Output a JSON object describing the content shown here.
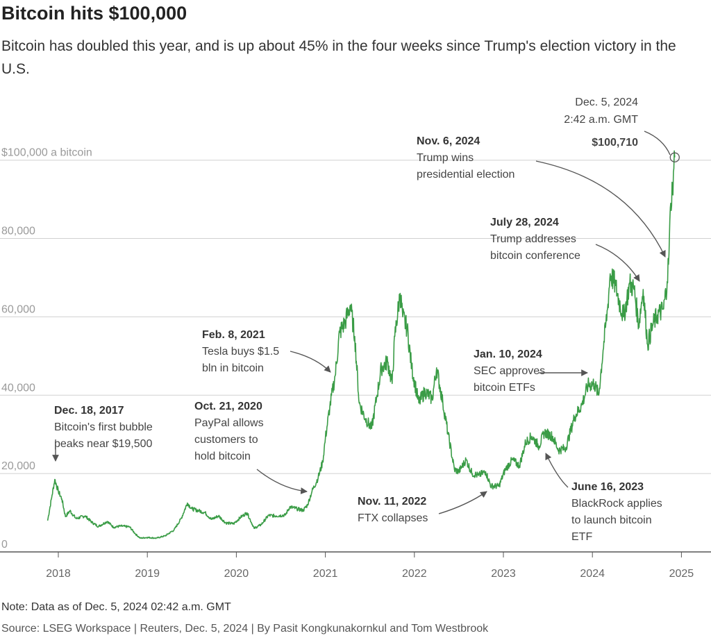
{
  "header": {
    "title": "Bitcoin hits $100,000",
    "subtitle": "Bitcoin has doubled this year, and is up about 45% in the four weeks since Trump's election victory in the U.S."
  },
  "footer": {
    "note": "Note: Data as of Dec. 5, 2024 02:42 a.m. GMT",
    "source": "Source: LSEG Workspace | Reuters, Dec. 5, 2024 | By Pasit Kongkunakornkul and Tom Westbrook"
  },
  "colors": {
    "line": "#3a9c46",
    "grid": "#d0d0d0",
    "axis": "#555555",
    "arrow": "#555555"
  },
  "chart_data": {
    "type": "line",
    "title": "Bitcoin hits $100,000",
    "ylabel": "",
    "xlabel": "",
    "ylim": [
      0,
      100000
    ],
    "xlim": [
      2017.85,
      2025.0
    ],
    "y_ticks": [
      {
        "value": 0,
        "label": "0"
      },
      {
        "value": 20000,
        "label": "20,000"
      },
      {
        "value": 40000,
        "label": "40,000"
      },
      {
        "value": 60000,
        "label": "60,000"
      },
      {
        "value": 80000,
        "label": "80,000"
      },
      {
        "value": 100000,
        "label": "$100,000 a bitcoin"
      }
    ],
    "x_ticks": [
      {
        "value": 2018,
        "label": "2018"
      },
      {
        "value": 2019,
        "label": "2019"
      },
      {
        "value": 2020,
        "label": "2020"
      },
      {
        "value": 2021,
        "label": "2021"
      },
      {
        "value": 2022,
        "label": "2022"
      },
      {
        "value": 2023,
        "label": "2023"
      },
      {
        "value": 2024,
        "label": "2024"
      },
      {
        "value": 2025,
        "label": "2025"
      }
    ],
    "grid": true,
    "series": [
      {
        "points": [
          [
            2017.88,
            8000
          ],
          [
            2017.93,
            14500
          ],
          [
            2017.96,
            18500
          ],
          [
            2018.0,
            15500
          ],
          [
            2018.04,
            13500
          ],
          [
            2018.08,
            9000
          ],
          [
            2018.13,
            10500
          ],
          [
            2018.2,
            8500
          ],
          [
            2018.3,
            9200
          ],
          [
            2018.38,
            7500
          ],
          [
            2018.45,
            6500
          ],
          [
            2018.55,
            7800
          ],
          [
            2018.62,
            6300
          ],
          [
            2018.7,
            6600
          ],
          [
            2018.8,
            6400
          ],
          [
            2018.87,
            4500
          ],
          [
            2018.92,
            3500
          ],
          [
            2019.0,
            3700
          ],
          [
            2019.1,
            3500
          ],
          [
            2019.2,
            4100
          ],
          [
            2019.3,
            5600
          ],
          [
            2019.38,
            8500
          ],
          [
            2019.45,
            12500
          ],
          [
            2019.5,
            11000
          ],
          [
            2019.58,
            10500
          ],
          [
            2019.65,
            10000
          ],
          [
            2019.72,
            8300
          ],
          [
            2019.8,
            9200
          ],
          [
            2019.88,
            7400
          ],
          [
            2019.97,
            7200
          ],
          [
            2020.05,
            8900
          ],
          [
            2020.12,
            10000
          ],
          [
            2020.2,
            6000
          ],
          [
            2020.28,
            7000
          ],
          [
            2020.36,
            9300
          ],
          [
            2020.45,
            9200
          ],
          [
            2020.55,
            9400
          ],
          [
            2020.6,
            11500
          ],
          [
            2020.68,
            11000
          ],
          [
            2020.75,
            10600
          ],
          [
            2020.8,
            12000
          ],
          [
            2020.85,
            15500
          ],
          [
            2020.92,
            19000
          ],
          [
            2020.97,
            23000
          ],
          [
            2021.0,
            29000
          ],
          [
            2021.05,
            37000
          ],
          [
            2021.11,
            45000
          ],
          [
            2021.16,
            56000
          ],
          [
            2021.22,
            58500
          ],
          [
            2021.28,
            63000
          ],
          [
            2021.33,
            55000
          ],
          [
            2021.38,
            38000
          ],
          [
            2021.45,
            34000
          ],
          [
            2021.52,
            31500
          ],
          [
            2021.58,
            40000
          ],
          [
            2021.63,
            47000
          ],
          [
            2021.7,
            48500
          ],
          [
            2021.75,
            43000
          ],
          [
            2021.78,
            55000
          ],
          [
            2021.84,
            66000
          ],
          [
            2021.87,
            60000
          ],
          [
            2021.92,
            57000
          ],
          [
            2021.97,
            47000
          ],
          [
            2022.05,
            38000
          ],
          [
            2022.12,
            41000
          ],
          [
            2022.2,
            39000
          ],
          [
            2022.25,
            47000
          ],
          [
            2022.32,
            38000
          ],
          [
            2022.38,
            30000
          ],
          [
            2022.45,
            21000
          ],
          [
            2022.5,
            20500
          ],
          [
            2022.58,
            23500
          ],
          [
            2022.65,
            20000
          ],
          [
            2022.72,
            19500
          ],
          [
            2022.8,
            20500
          ],
          [
            2022.86,
            16800
          ],
          [
            2022.95,
            16800
          ],
          [
            2023.02,
            21000
          ],
          [
            2023.1,
            23500
          ],
          [
            2023.18,
            22000
          ],
          [
            2023.25,
            28000
          ],
          [
            2023.32,
            29500
          ],
          [
            2023.4,
            27000
          ],
          [
            2023.46,
            30500
          ],
          [
            2023.55,
            29500
          ],
          [
            2023.62,
            26000
          ],
          [
            2023.7,
            26500
          ],
          [
            2023.8,
            34500
          ],
          [
            2023.88,
            37500
          ],
          [
            2023.95,
            42500
          ],
          [
            2024.02,
            43000
          ],
          [
            2024.07,
            40000
          ],
          [
            2024.12,
            51500
          ],
          [
            2024.17,
            62000
          ],
          [
            2024.2,
            71000
          ],
          [
            2024.26,
            68000
          ],
          [
            2024.3,
            64000
          ],
          [
            2024.35,
            60000
          ],
          [
            2024.42,
            68500
          ],
          [
            2024.47,
            67000
          ],
          [
            2024.52,
            58000
          ],
          [
            2024.57,
            67000
          ],
          [
            2024.62,
            53000
          ],
          [
            2024.68,
            58000
          ],
          [
            2024.73,
            60500
          ],
          [
            2024.8,
            62000
          ],
          [
            2024.84,
            69000
          ],
          [
            2024.86,
            76000
          ],
          [
            2024.88,
            89000
          ],
          [
            2024.9,
            93000
          ],
          [
            2024.91,
            97000
          ],
          [
            2024.925,
            100710
          ]
        ]
      }
    ],
    "annotations": [
      {
        "date": "Dec. 18, 2017",
        "lines": [
          "Bitcoin's first bubble",
          "peaks near $19,500"
        ]
      },
      {
        "date": "Oct. 21, 2020",
        "lines": [
          "PayPal allows",
          "customers to",
          "hold bitcoin"
        ]
      },
      {
        "date": "Feb. 8, 2021",
        "lines": [
          "Tesla buys $1.5",
          "bln in bitcoin"
        ]
      },
      {
        "date": "Nov. 11, 2022",
        "lines": [
          "FTX collapses"
        ]
      },
      {
        "date": "June 16, 2023",
        "lines": [
          "BlackRock applies",
          "to launch bitcoin",
          "ETF"
        ]
      },
      {
        "date": "Jan. 10, 2024",
        "lines": [
          "SEC approves",
          "bitcoin ETFs"
        ]
      },
      {
        "date": "July 28, 2024",
        "lines": [
          "Trump addresses",
          "bitcoin conference"
        ]
      },
      {
        "date": "Nov. 6, 2024",
        "lines": [
          "Trump wins",
          "presidential election"
        ]
      }
    ],
    "latest": {
      "date": "Dec. 5, 2024",
      "time": "2:42 a.m. GMT",
      "value_label": "$100,710",
      "value": 100710
    }
  }
}
